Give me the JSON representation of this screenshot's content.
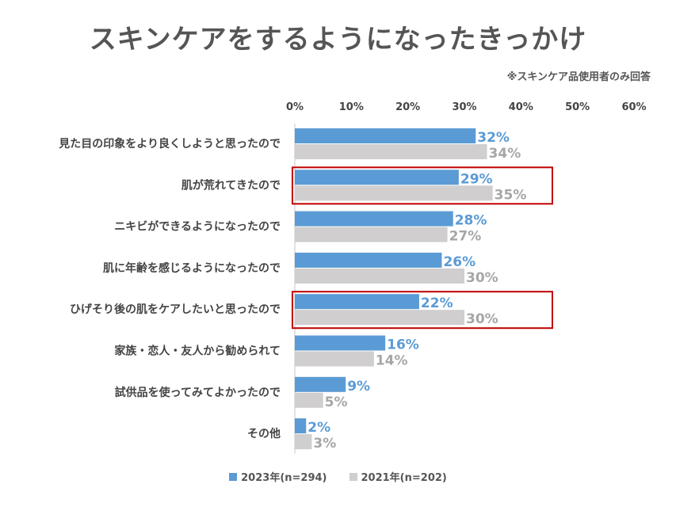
{
  "title": "スキンケアをするようになったきっかけ",
  "note": "※スキンケア品使用者のみ回答",
  "chart_data": {
    "type": "bar",
    "orientation": "horizontal",
    "title": "スキンケアをするようになったきっかけ",
    "categories": [
      "見た目の印象をより良くしようと思ったので",
      "肌が荒れてきたので",
      "ニキビができるようになったので",
      "肌に年齢を感じるようになったので",
      "ひげそり後の肌をケアしたいと思ったので",
      "家族・恋人・友人から勧められて",
      "試供品を使ってみてよかったので",
      "その他"
    ],
    "series": [
      {
        "name": "2023年(n=294)",
        "color": "#5b9bd5",
        "values": [
          32,
          29,
          28,
          26,
          22,
          16,
          9,
          2
        ]
      },
      {
        "name": "2021年(n=202)",
        "color": "#d0cece",
        "values": [
          34,
          35,
          27,
          30,
          30,
          14,
          5,
          3
        ]
      }
    ],
    "xlim": [
      0,
      60
    ],
    "xticks": [
      "0%",
      "10%",
      "20%",
      "30%",
      "40%",
      "50%",
      "60%"
    ],
    "value_suffix": "%",
    "highlighted_categories": [
      1,
      4
    ],
    "highlight_color": "#c00000",
    "legend_position": "bottom"
  }
}
